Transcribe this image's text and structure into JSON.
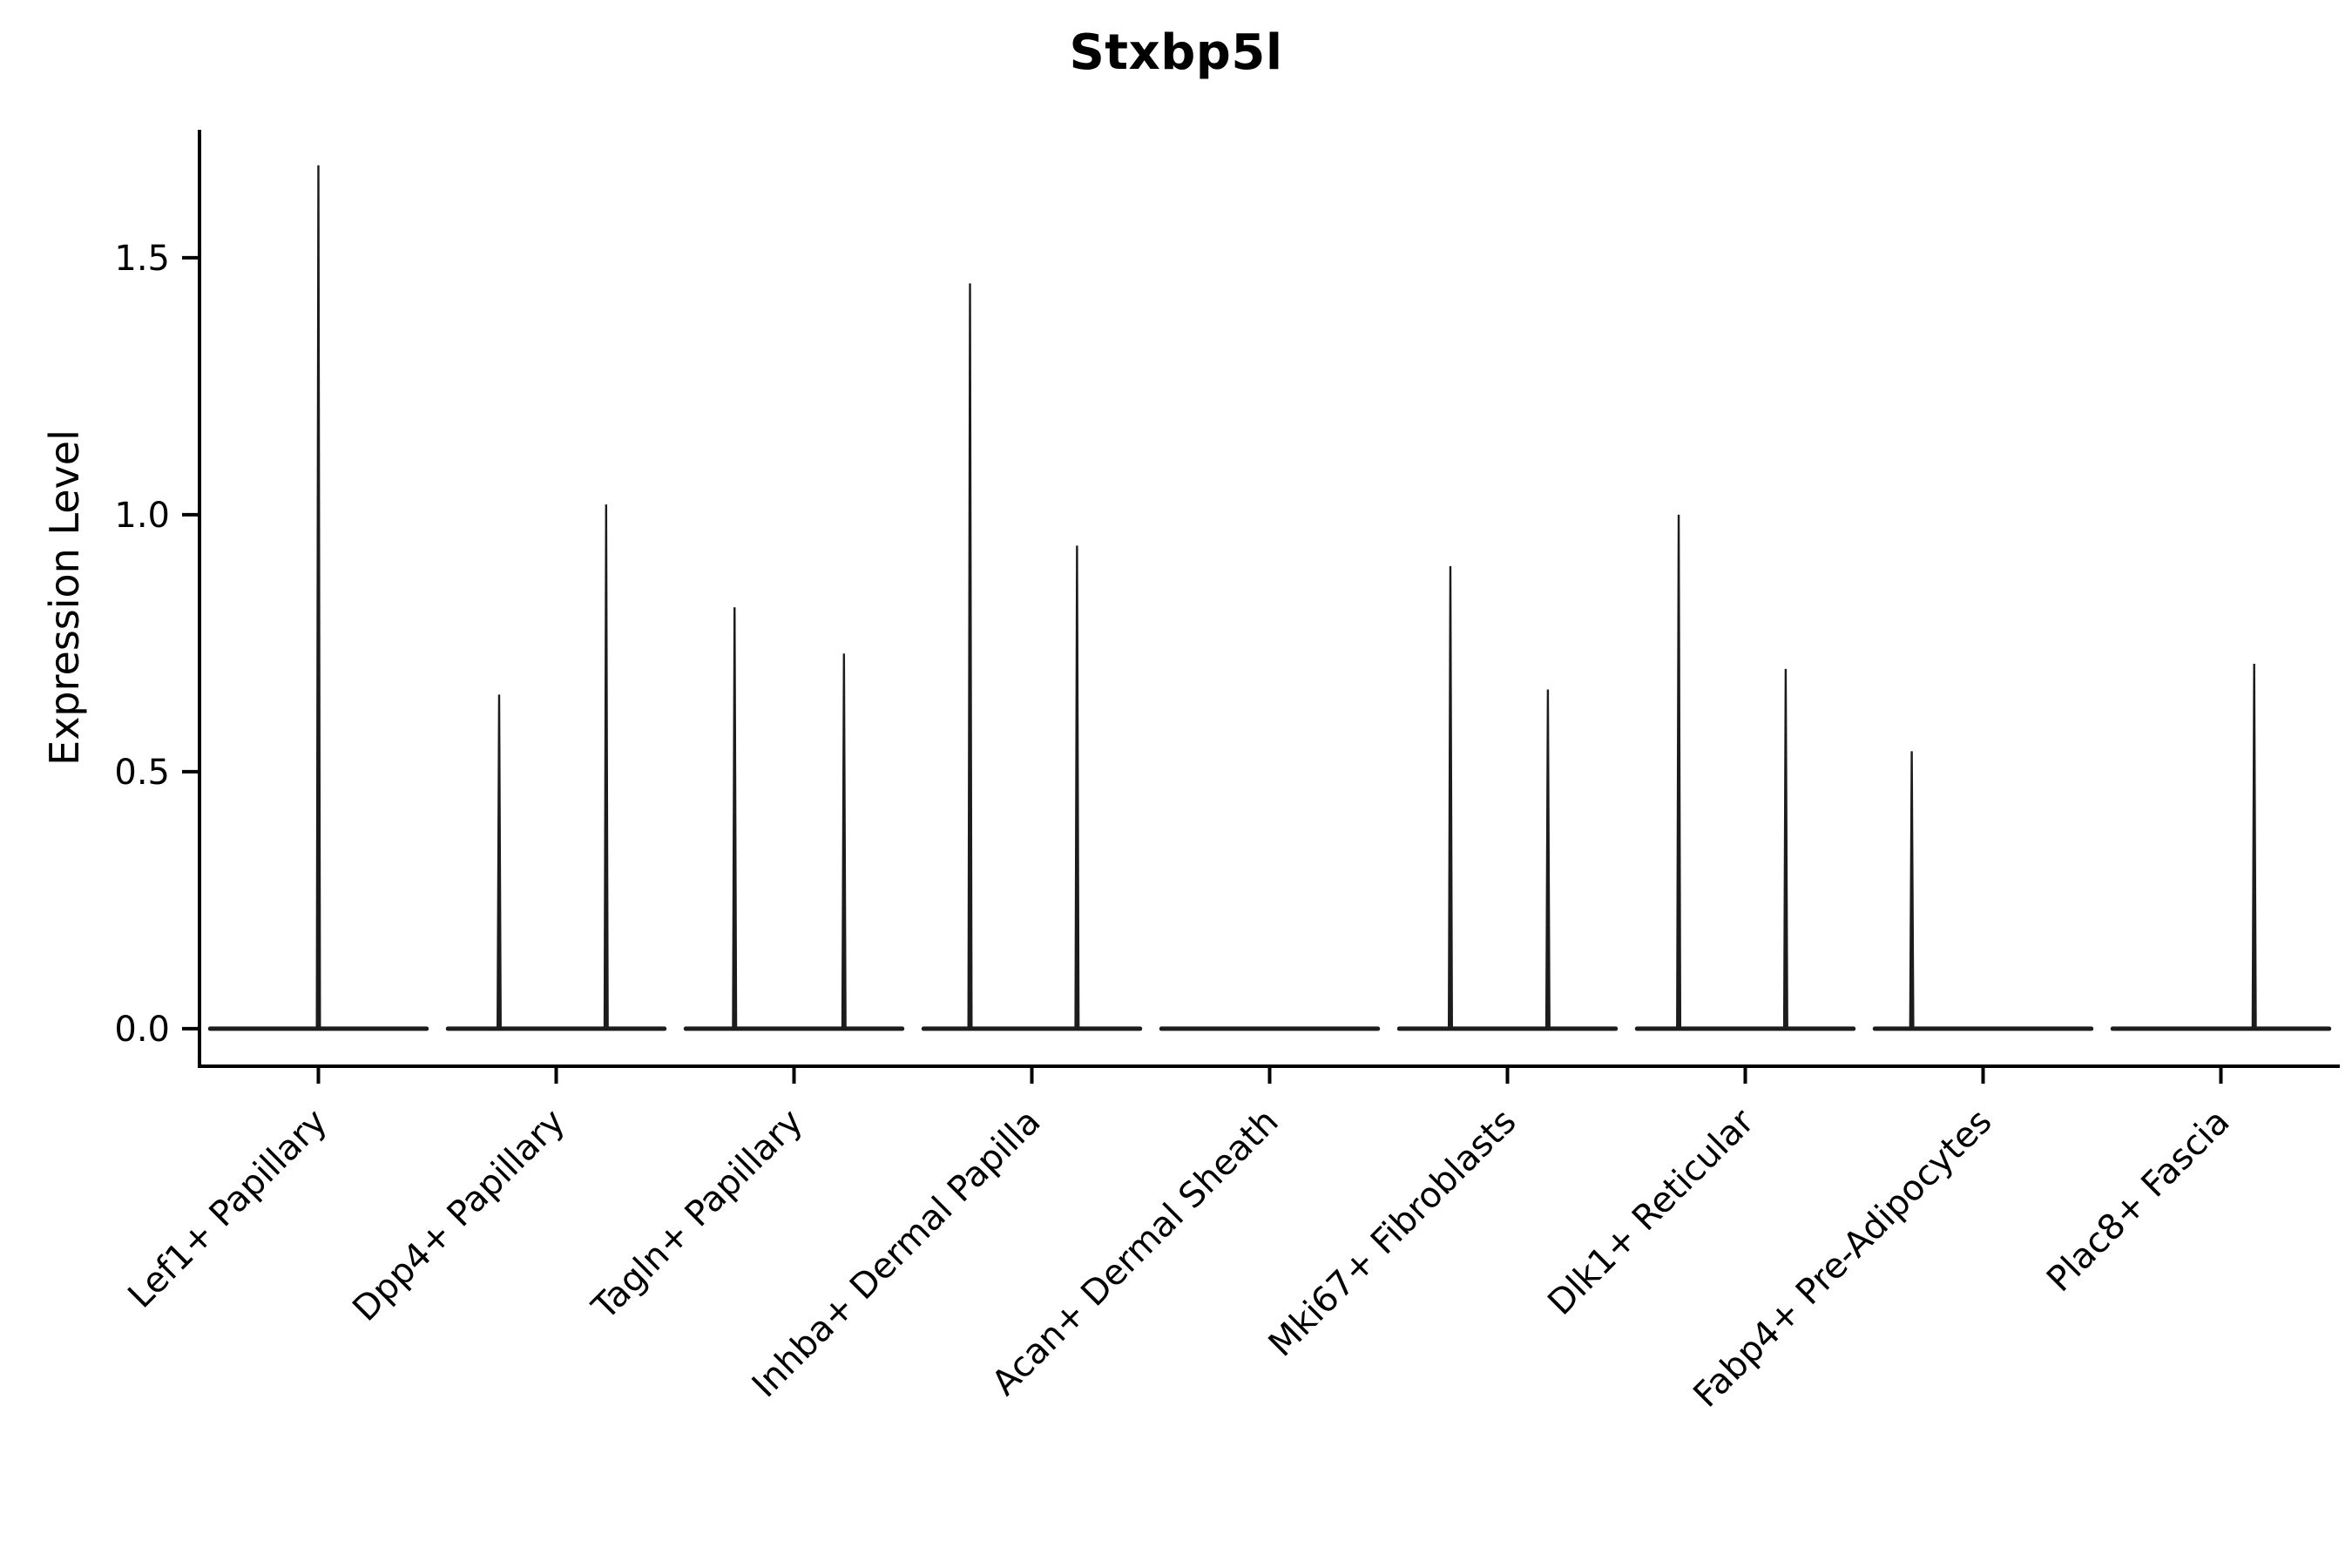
{
  "chart_data": {
    "type": "violin",
    "title": "Stxbp5l",
    "ylabel": "Expression Level",
    "xlabel": "",
    "ylim": [
      -0.073,
      1.749
    ],
    "yticks": [
      "0.0",
      "0.5",
      "1.0",
      "1.5"
    ],
    "grid": false,
    "legend_position": "none",
    "ink_color": "#000000",
    "violin_color": "#1c1c1c",
    "categories": [
      "Lef1+ Papillary",
      "Dpp4+ Papillary",
      "Tagln+ Papillary",
      "Inhba+ Dermal Papilla",
      "Acan+ Dermal Sheath",
      "Mki67+ Fibroblasts",
      "Dlk1+ Reticular",
      "Fabp4+ Pre-Adipocytes",
      "Plac8+ Fascia"
    ],
    "violins": [
      {
        "category": "Lef1+ Papillary",
        "base_halfwidth": 0.455,
        "spikes": [
          {
            "offset": 0.0,
            "max": 1.68
          }
        ]
      },
      {
        "category": "Dpp4+ Papillary",
        "base_halfwidth": 0.455,
        "spikes": [
          {
            "offset": -0.24,
            "max": 0.65
          },
          {
            "offset": 0.21,
            "max": 1.02
          }
        ]
      },
      {
        "category": "Tagln+ Papillary",
        "base_halfwidth": 0.455,
        "spikes": [
          {
            "offset": -0.25,
            "max": 0.82
          },
          {
            "offset": 0.21,
            "max": 0.73
          }
        ]
      },
      {
        "category": "Inhba+ Dermal Papilla",
        "base_halfwidth": 0.455,
        "spikes": [
          {
            "offset": -0.26,
            "max": 1.45
          },
          {
            "offset": 0.19,
            "max": 0.94
          }
        ]
      },
      {
        "category": "Acan+ Dermal Sheath",
        "base_halfwidth": 0.455,
        "spikes": []
      },
      {
        "category": "Mki67+ Fibroblasts",
        "base_halfwidth": 0.455,
        "spikes": [
          {
            "offset": -0.24,
            "max": 0.9
          },
          {
            "offset": 0.17,
            "max": 0.66
          }
        ]
      },
      {
        "category": "Dlk1+ Reticular",
        "base_halfwidth": 0.455,
        "spikes": [
          {
            "offset": -0.28,
            "max": 1.0
          },
          {
            "offset": 0.17,
            "max": 0.7
          }
        ]
      },
      {
        "category": "Fabp4+ Pre-Adipocytes",
        "base_halfwidth": 0.455,
        "spikes": [
          {
            "offset": -0.3,
            "max": 0.54
          }
        ]
      },
      {
        "category": "Plac8+ Fascia",
        "base_halfwidth": 0.455,
        "spikes": [
          {
            "offset": 0.14,
            "max": 0.71
          }
        ]
      }
    ]
  }
}
